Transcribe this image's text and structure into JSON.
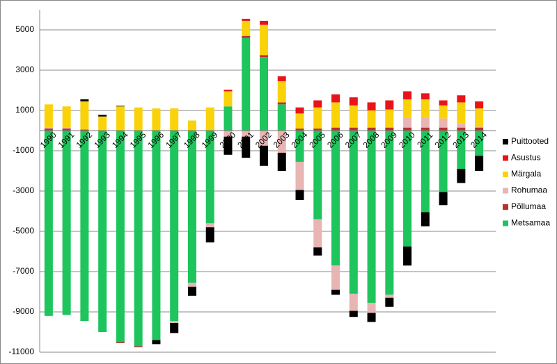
{
  "chart_data": {
    "type": "stacked_bar",
    "categories": [
      "1990",
      "1991",
      "1992",
      "1993",
      "1994",
      "1995",
      "1996",
      "1997",
      "1998",
      "1999",
      "2000",
      "2001",
      "2002",
      "2003",
      "2004",
      "2005",
      "2006",
      "2007",
      "2008",
      "2009",
      "2010",
      "2011",
      "2012",
      "2013",
      "2014"
    ],
    "series": [
      {
        "name": "Metsamaa",
        "color": "#1ec45c",
        "values": [
          -9200,
          -9150,
          -9450,
          -10000,
          -10500,
          -10700,
          -10400,
          -9450,
          -7550,
          -4600,
          1200,
          4600,
          3650,
          1300,
          -1550,
          -4400,
          -6700,
          -8100,
          -8550,
          -8150,
          -5750,
          -4050,
          -3050,
          -1900,
          -1250
        ]
      },
      {
        "name": "Põllumaa",
        "color": "#b8312f",
        "values": [
          100,
          100,
          50,
          0,
          -50,
          -30,
          0,
          0,
          0,
          0,
          0,
          100,
          100,
          100,
          100,
          100,
          150,
          150,
          150,
          150,
          150,
          150,
          150,
          150,
          150
        ]
      },
      {
        "name": "Rohumaa",
        "color": "#e8b4b4",
        "values": [
          50,
          50,
          0,
          0,
          0,
          0,
          0,
          -100,
          -200,
          -200,
          -300,
          -300,
          -750,
          -1100,
          -1400,
          -1400,
          -1200,
          -850,
          -500,
          -150,
          500,
          500,
          450,
          200,
          50
        ]
      },
      {
        "name": "Märgala",
        "color": "#fad20a",
        "values": [
          1150,
          1050,
          1400,
          700,
          1200,
          1150,
          1100,
          1100,
          500,
          1150,
          750,
          750,
          1500,
          1050,
          750,
          1050,
          1250,
          1100,
          850,
          900,
          900,
          900,
          650,
          1050,
          900
        ]
      },
      {
        "name": "Asustus",
        "color": "#e8141a",
        "values": [
          0,
          0,
          0,
          0,
          0,
          0,
          0,
          0,
          0,
          0,
          80,
          100,
          200,
          250,
          300,
          350,
          400,
          400,
          400,
          450,
          400,
          300,
          250,
          350,
          350
        ]
      },
      {
        "name": "Puittooted",
        "color": "#000000",
        "values": [
          0,
          0,
          100,
          80,
          30,
          -20,
          -200,
          -500,
          -450,
          -750,
          -900,
          -1050,
          -1000,
          -900,
          -500,
          -400,
          -250,
          -300,
          -450,
          -450,
          -950,
          -700,
          -650,
          -700,
          -750
        ]
      }
    ],
    "ylim": [
      -11000,
      6000
    ],
    "yticks": [
      -11000,
      -9000,
      -7000,
      -5000,
      -3000,
      -1000,
      1000,
      3000,
      5000
    ],
    "grid": true
  }
}
